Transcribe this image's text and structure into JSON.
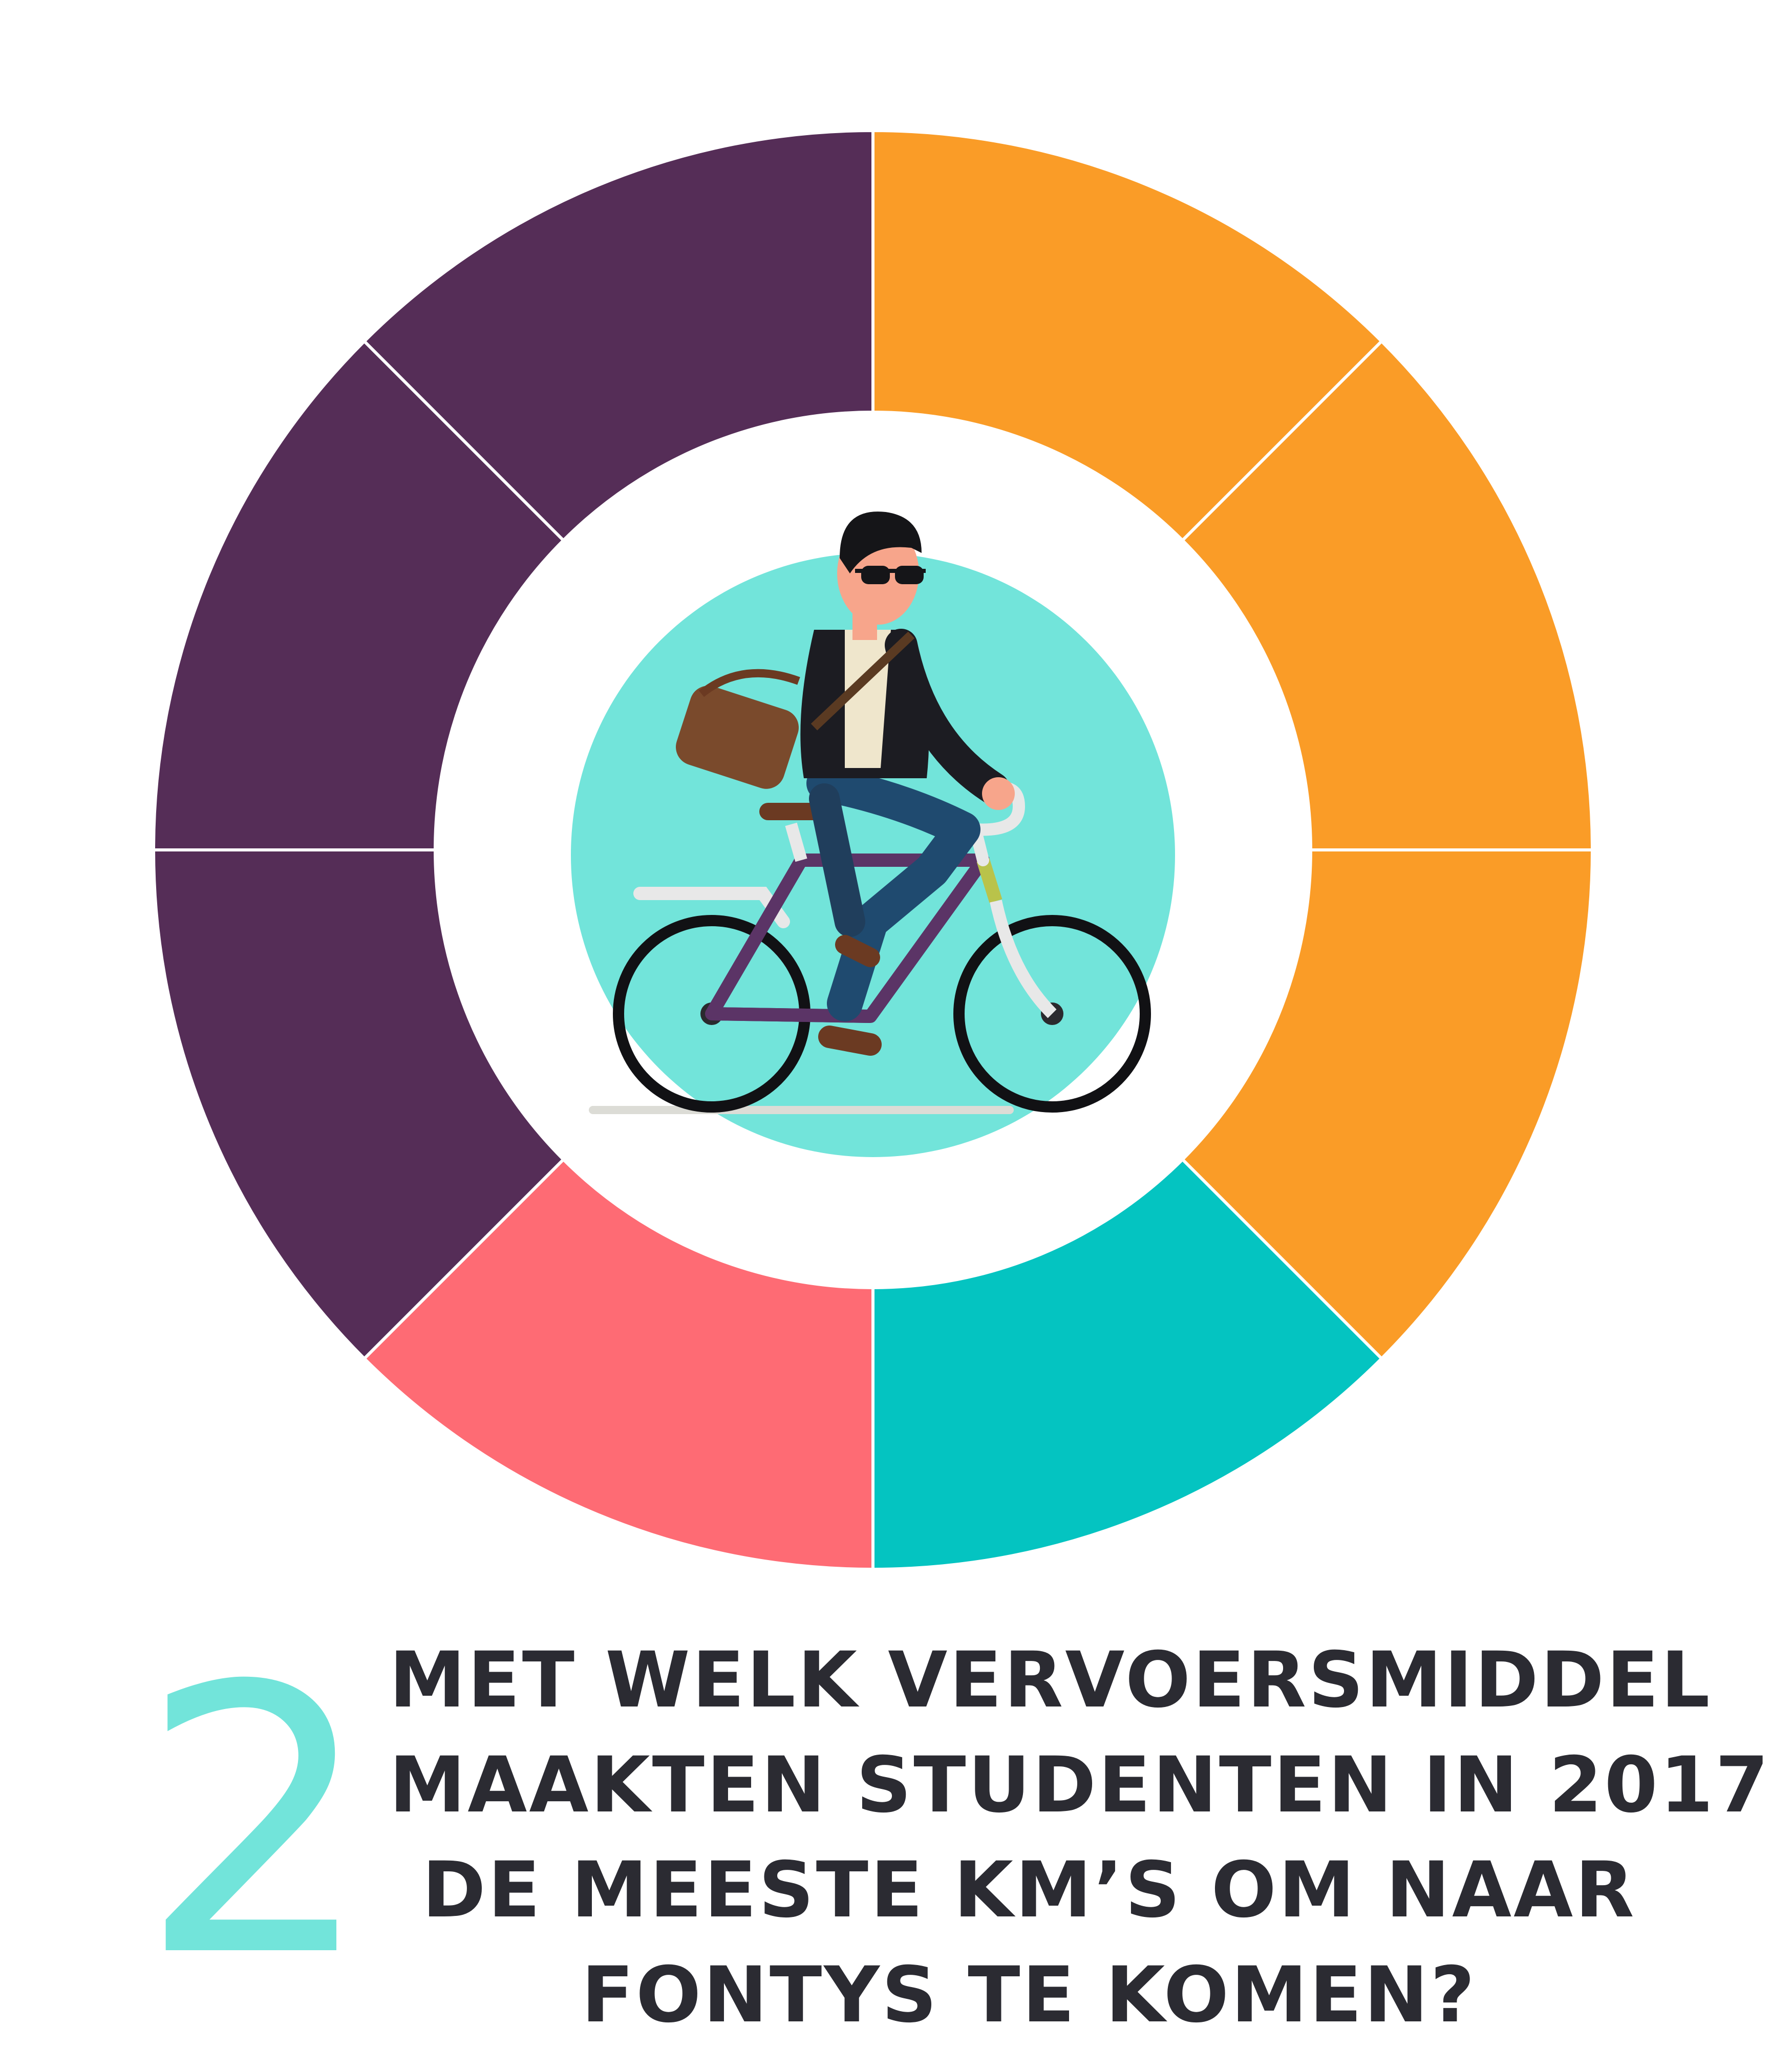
{
  "colors": {
    "orange": "#fa9c27",
    "purple": "#552d57",
    "teal": "#04c4c1",
    "pink": "#fe6b74",
    "mint": "#72e4da",
    "text": "#2b2b32"
  },
  "donut_segments": [
    {
      "color_key": "orange"
    },
    {
      "color_key": "orange"
    },
    {
      "color_key": "orange"
    },
    {
      "color_key": "teal"
    },
    {
      "color_key": "pink"
    },
    {
      "color_key": "purple"
    },
    {
      "color_key": "purple"
    },
    {
      "color_key": "purple"
    }
  ],
  "illustration": {
    "subject": "cyclist-illustration",
    "icon": "bicycle-icon"
  },
  "question": {
    "number": "2",
    "lines": [
      "MET WELK VERVOERSMIDDEL",
      "MAAKTEN STUDENTEN IN 2017",
      "DE MEESTE KM’S OM NAAR",
      "FONTYS TE KOMEN?"
    ]
  }
}
